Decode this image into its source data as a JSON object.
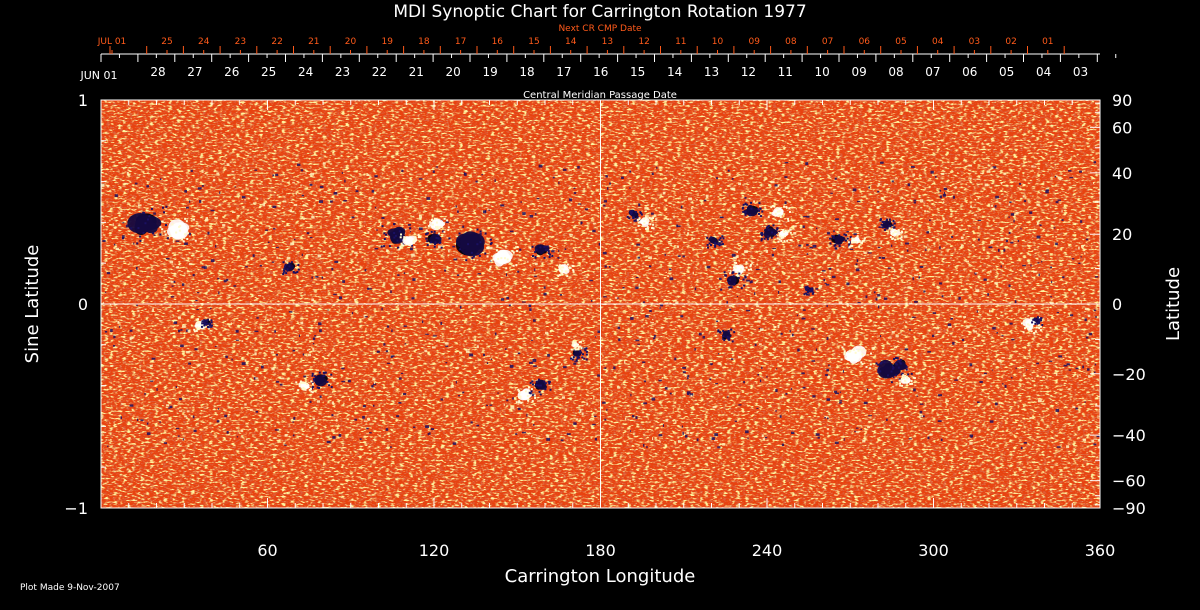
{
  "chart_data": {
    "type": "heatmap",
    "title": "MDI Synoptic Chart for Carrington Rotation 1977",
    "xlabel": "Carrington Longitude",
    "ylabel": "Sine Latitude",
    "y2label": "Latitude",
    "top_axis_label": "Central Meridian Passage Date",
    "top2_axis_label": "Next CR CMP Date",
    "xlim": [
      0,
      360
    ],
    "ylim": [
      -1,
      1
    ],
    "x_ticks": [
      "60",
      "120",
      "180",
      "240",
      "300",
      "360"
    ],
    "y_ticks": [
      {
        "v": 1,
        "label": "1"
      },
      {
        "v": 0,
        "label": "0"
      },
      {
        "v": -1,
        "label": "−1"
      }
    ],
    "y2_ticks": [
      "90",
      "60",
      "40",
      "20",
      "0",
      "−20",
      "−40",
      "−60",
      "−90"
    ],
    "cmp_dates": [
      "JUN 01",
      "28",
      "27",
      "26",
      "25",
      "24",
      "23",
      "22",
      "21",
      "20",
      "19",
      "18",
      "17",
      "16",
      "15",
      "14",
      "13",
      "12",
      "11",
      "10",
      "09",
      "08",
      "07",
      "06",
      "05",
      "04",
      "03"
    ],
    "next_cr_dates": [
      "JUL 01",
      "25",
      "24",
      "23",
      "22",
      "21",
      "20",
      "19",
      "18",
      "17",
      "16",
      "15",
      "14",
      "13",
      "12",
      "11",
      "10",
      "09",
      "08",
      "07",
      "06",
      "05",
      "04",
      "03",
      "02",
      "01"
    ],
    "grid": "crosshair at longitude 180 and latitude 0",
    "colors": {
      "background_field": "#e8420f",
      "positive_polarity": "#ffffff",
      "negative_polarity": "#140a40",
      "date_axis_next": "#ff5a1a"
    },
    "regions": [
      {
        "lon": 16,
        "sinlat": 0.39,
        "polarity": "negative",
        "extent_deg": 9
      },
      {
        "lon": 28,
        "sinlat": 0.36,
        "polarity": "positive",
        "extent_deg": 7
      },
      {
        "lon": 68,
        "sinlat": 0.18,
        "polarity": "negative",
        "extent_deg": 3
      },
      {
        "lon": 106,
        "sinlat": 0.34,
        "polarity": "negative",
        "extent_deg": 6
      },
      {
        "lon": 111,
        "sinlat": 0.31,
        "polarity": "positive",
        "extent_deg": 4
      },
      {
        "lon": 120,
        "sinlat": 0.32,
        "polarity": "negative",
        "extent_deg": 4
      },
      {
        "lon": 121,
        "sinlat": 0.39,
        "polarity": "positive",
        "extent_deg": 4
      },
      {
        "lon": 133,
        "sinlat": 0.29,
        "polarity": "negative",
        "extent_deg": 8
      },
      {
        "lon": 144,
        "sinlat": 0.23,
        "polarity": "positive",
        "extent_deg": 6
      },
      {
        "lon": 159,
        "sinlat": 0.27,
        "polarity": "negative",
        "extent_deg": 4
      },
      {
        "lon": 167,
        "sinlat": 0.17,
        "polarity": "positive",
        "extent_deg": 3
      },
      {
        "lon": 192,
        "sinlat": 0.44,
        "polarity": "negative",
        "extent_deg": 3
      },
      {
        "lon": 196,
        "sinlat": 0.4,
        "polarity": "positive",
        "extent_deg": 3
      },
      {
        "lon": 234,
        "sinlat": 0.46,
        "polarity": "negative",
        "extent_deg": 4
      },
      {
        "lon": 244,
        "sinlat": 0.45,
        "polarity": "positive",
        "extent_deg": 4
      },
      {
        "lon": 241,
        "sinlat": 0.35,
        "polarity": "negative",
        "extent_deg": 4
      },
      {
        "lon": 246,
        "sinlat": 0.34,
        "polarity": "positive",
        "extent_deg": 3
      },
      {
        "lon": 221,
        "sinlat": 0.31,
        "polarity": "negative",
        "extent_deg": 3
      },
      {
        "lon": 230,
        "sinlat": 0.17,
        "polarity": "positive",
        "extent_deg": 4
      },
      {
        "lon": 228,
        "sinlat": 0.12,
        "polarity": "negative",
        "extent_deg": 4
      },
      {
        "lon": 266,
        "sinlat": 0.31,
        "polarity": "negative",
        "extent_deg": 4
      },
      {
        "lon": 272,
        "sinlat": 0.31,
        "polarity": "positive",
        "extent_deg": 3
      },
      {
        "lon": 283,
        "sinlat": 0.39,
        "polarity": "negative",
        "extent_deg": 3
      },
      {
        "lon": 286,
        "sinlat": 0.35,
        "polarity": "positive",
        "extent_deg": 3
      },
      {
        "lon": 255,
        "sinlat": 0.07,
        "polarity": "negative",
        "extent_deg": 2
      },
      {
        "lon": 36,
        "sinlat": -0.1,
        "polarity": "positive",
        "extent_deg": 3
      },
      {
        "lon": 38,
        "sinlat": -0.09,
        "polarity": "negative",
        "extent_deg": 2
      },
      {
        "lon": 79,
        "sinlat": -0.37,
        "polarity": "negative",
        "extent_deg": 4
      },
      {
        "lon": 73,
        "sinlat": -0.4,
        "polarity": "positive",
        "extent_deg": 3
      },
      {
        "lon": 153,
        "sinlat": -0.44,
        "polarity": "positive",
        "extent_deg": 4
      },
      {
        "lon": 158,
        "sinlat": -0.4,
        "polarity": "negative",
        "extent_deg": 4
      },
      {
        "lon": 172,
        "sinlat": -0.24,
        "polarity": "negative",
        "extent_deg": 3
      },
      {
        "lon": 171,
        "sinlat": -0.2,
        "polarity": "positive",
        "extent_deg": 2
      },
      {
        "lon": 272,
        "sinlat": -0.25,
        "polarity": "positive",
        "extent_deg": 6
      },
      {
        "lon": 284,
        "sinlat": -0.32,
        "polarity": "negative",
        "extent_deg": 6
      },
      {
        "lon": 288,
        "sinlat": -0.3,
        "polarity": "negative",
        "extent_deg": 4
      },
      {
        "lon": 290,
        "sinlat": -0.37,
        "polarity": "positive",
        "extent_deg": 3
      },
      {
        "lon": 335,
        "sinlat": -0.1,
        "polarity": "positive",
        "extent_deg": 4
      },
      {
        "lon": 337,
        "sinlat": -0.08,
        "polarity": "negative",
        "extent_deg": 2
      },
      {
        "lon": 225,
        "sinlat": -0.15,
        "polarity": "negative",
        "extent_deg": 3
      }
    ]
  },
  "footer": {
    "plot_made": "Plot Made  9-Nov-2007"
  }
}
